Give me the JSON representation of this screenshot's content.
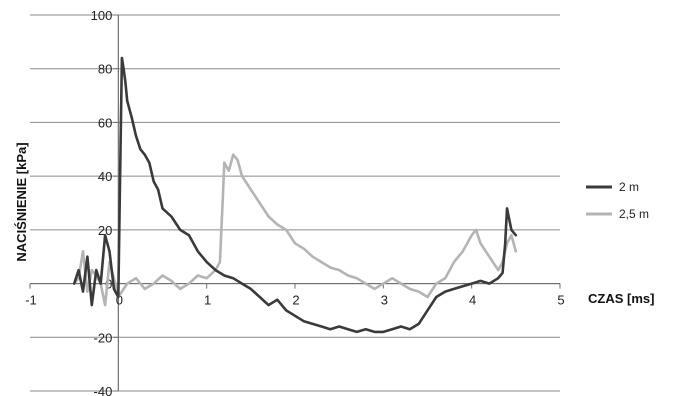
{
  "chart_data": {
    "type": "line",
    "title": "",
    "xlabel": "CZAS [ms]",
    "ylabel": "NACIŚNIENIE [kPa]",
    "xlim": [
      -1,
      5
    ],
    "ylim": [
      -40,
      100
    ],
    "xticks": [
      -1,
      0,
      1,
      2,
      3,
      4,
      5
    ],
    "yticks": [
      -40,
      -20,
      0,
      20,
      40,
      60,
      80,
      100
    ],
    "xtick_labels": [
      "-1",
      "0",
      "1",
      "2",
      "3",
      "4",
      "5"
    ],
    "ytick_labels": [
      "-40",
      "-20",
      "0",
      "20",
      "40",
      "60",
      "80",
      "100"
    ],
    "grid": "horizontal",
    "legend_position": "right",
    "series": [
      {
        "name": "2 m",
        "color": "#3a3a3a",
        "x": [
          -0.5,
          -0.45,
          -0.4,
          -0.35,
          -0.3,
          -0.25,
          -0.2,
          -0.15,
          -0.1,
          -0.05,
          0.0,
          0.02,
          0.04,
          0.06,
          0.08,
          0.1,
          0.15,
          0.2,
          0.25,
          0.3,
          0.35,
          0.4,
          0.45,
          0.5,
          0.6,
          0.7,
          0.8,
          0.9,
          1.0,
          1.1,
          1.2,
          1.3,
          1.4,
          1.5,
          1.6,
          1.7,
          1.8,
          1.9,
          2.0,
          2.1,
          2.2,
          2.3,
          2.4,
          2.5,
          2.6,
          2.7,
          2.8,
          2.9,
          3.0,
          3.1,
          3.2,
          3.3,
          3.4,
          3.5,
          3.6,
          3.7,
          3.8,
          3.9,
          4.0,
          4.1,
          4.2,
          4.3,
          4.35,
          4.38,
          4.4,
          4.45,
          4.5
        ],
        "y": [
          0,
          5,
          -3,
          10,
          -8,
          5,
          0,
          18,
          12,
          -2,
          -5,
          40,
          84,
          80,
          75,
          68,
          62,
          55,
          50,
          48,
          45,
          38,
          35,
          28,
          25,
          20,
          18,
          12,
          8,
          5,
          3,
          2,
          0,
          -2,
          -5,
          -8,
          -6,
          -10,
          -12,
          -14,
          -15,
          -16,
          -17,
          -16,
          -17,
          -18,
          -17,
          -18,
          -18,
          -17,
          -16,
          -17,
          -15,
          -10,
          -5,
          -3,
          -2,
          -1,
          0,
          1,
          0,
          2,
          4,
          15,
          28,
          20,
          18
        ]
      },
      {
        "name": "2,5 m",
        "color": "#b4b4b4",
        "x": [
          -0.5,
          -0.45,
          -0.4,
          -0.35,
          -0.3,
          -0.25,
          -0.2,
          -0.15,
          -0.1,
          -0.05,
          0.0,
          0.1,
          0.2,
          0.3,
          0.4,
          0.5,
          0.6,
          0.7,
          0.8,
          0.9,
          1.0,
          1.1,
          1.15,
          1.18,
          1.2,
          1.25,
          1.3,
          1.35,
          1.4,
          1.5,
          1.6,
          1.7,
          1.8,
          1.9,
          2.0,
          2.1,
          2.2,
          2.3,
          2.4,
          2.5,
          2.6,
          2.7,
          2.8,
          2.9,
          3.0,
          3.1,
          3.2,
          3.3,
          3.4,
          3.5,
          3.6,
          3.7,
          3.8,
          3.9,
          4.0,
          4.05,
          4.1,
          4.2,
          4.3,
          4.35,
          4.4,
          4.45,
          4.5
        ],
        "y": [
          0,
          2,
          12,
          -3,
          5,
          3,
          0,
          -8,
          8,
          2,
          -5,
          0,
          2,
          -2,
          0,
          3,
          1,
          -2,
          0,
          3,
          2,
          5,
          8,
          30,
          45,
          42,
          48,
          46,
          40,
          35,
          30,
          25,
          22,
          20,
          15,
          13,
          10,
          8,
          6,
          5,
          3,
          2,
          0,
          -2,
          0,
          2,
          0,
          -2,
          -3,
          -5,
          0,
          2,
          8,
          12,
          18,
          20,
          15,
          10,
          5,
          8,
          15,
          18,
          12
        ]
      }
    ]
  }
}
